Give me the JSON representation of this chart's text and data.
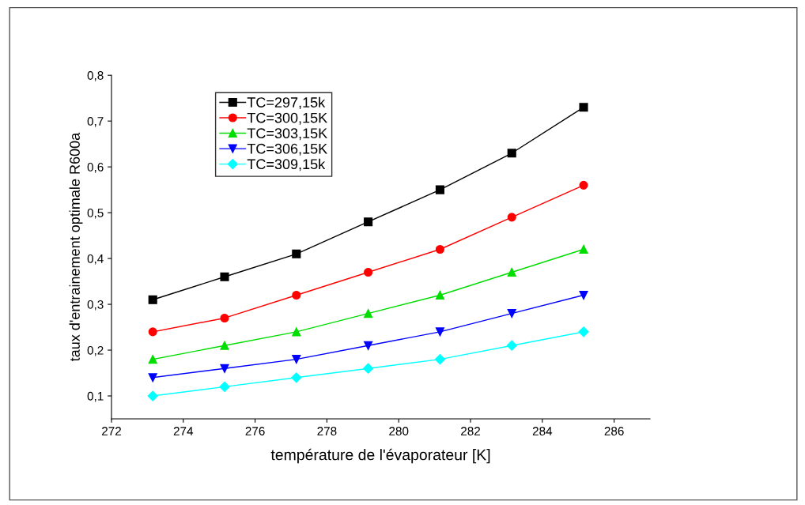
{
  "chart_data": {
    "type": "line",
    "xlabel": "température de l'évaporateur [K]",
    "ylabel": "taux d'entrainement optimale R600a",
    "x": [
      273.15,
      275.15,
      277.15,
      279.15,
      281.15,
      283.15,
      285.15
    ],
    "series": [
      {
        "name": "TC=297,15k",
        "color": "#000000",
        "marker": "square",
        "values": [
          0.31,
          0.36,
          0.41,
          0.48,
          0.55,
          0.63,
          0.73
        ]
      },
      {
        "name": "TC=300,15K",
        "color": "#ff0000",
        "marker": "circle",
        "values": [
          0.24,
          0.27,
          0.32,
          0.37,
          0.42,
          0.49,
          0.56
        ]
      },
      {
        "name": "TC=303,15K",
        "color": "#00dd00",
        "marker": "triangle",
        "values": [
          0.18,
          0.21,
          0.24,
          0.28,
          0.32,
          0.37,
          0.42
        ]
      },
      {
        "name": "TC=306,15K",
        "color": "#0000ff",
        "marker": "triangle_down",
        "values": [
          0.14,
          0.16,
          0.18,
          0.21,
          0.24,
          0.28,
          0.32
        ]
      },
      {
        "name": "TC=309,15k",
        "color": "#00ffff",
        "marker": "diamond",
        "values": [
          0.1,
          0.12,
          0.14,
          0.16,
          0.18,
          0.21,
          0.24
        ]
      }
    ],
    "xlim": [
      272,
      287
    ],
    "xticks": [
      272,
      274,
      276,
      278,
      280,
      282,
      284,
      286
    ],
    "ylim": [
      0.05,
      0.8
    ],
    "yticks": [
      {
        "value": 0.1,
        "label": "0,1"
      },
      {
        "value": 0.2,
        "label": "0,2"
      },
      {
        "value": 0.3,
        "label": "0,3"
      },
      {
        "value": 0.4,
        "label": "0,4"
      },
      {
        "value": 0.5,
        "label": "0,5"
      },
      {
        "value": 0.6,
        "label": "0,6"
      },
      {
        "value": 0.7,
        "label": "0,7"
      },
      {
        "value": 0.8,
        "label": "0,8"
      }
    ],
    "grid": false,
    "legend": "top left",
    "line_style": "solid"
  }
}
